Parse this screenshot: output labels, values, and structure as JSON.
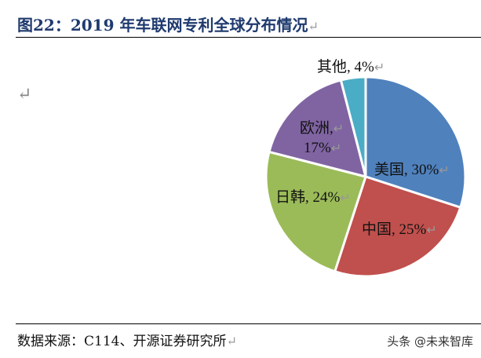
{
  "title": "图22：2019 年车联网专利全球分布情况",
  "source": "数据来源：C114、开源证券研究所",
  "watermark": "头条 @未来智库",
  "chart_data": {
    "type": "pie",
    "categories": [
      "美国",
      "中国",
      "日韩",
      "欧洲",
      "其他"
    ],
    "values": [
      30,
      25,
      24,
      17,
      4
    ],
    "colors": [
      "#4f81bd",
      "#c0504d",
      "#9bbb59",
      "#8064a2",
      "#4bacc6"
    ],
    "labels": {
      "us": "美国, 30%",
      "cn": "中国, 25%",
      "jk": "日韩, 24%",
      "eu1": "欧洲,",
      "eu2": "17%",
      "other": "其他, 4%"
    }
  }
}
